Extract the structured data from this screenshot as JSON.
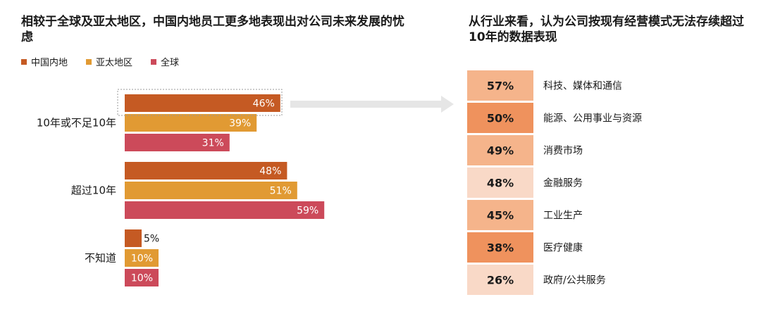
{
  "left_title": "相较于全球及亚太地区，中国内地员工更多地表现出对公司未来发展的忧虑",
  "right_title": "从行业来看，认为公司按现有经营模式无法存续超过10年的数据表现",
  "colors": {
    "series1": "#c55a23",
    "series2": "#e19a33",
    "series3": "#cc4a5a",
    "pct_dark": "#ef925d",
    "pct_mid": "#f5b48b",
    "pct_light": "#f9d9c7",
    "arrow": "#e6e6e6"
  },
  "chart_data": [
    {
      "type": "bar",
      "orientation": "horizontal",
      "categories": [
        "10年或不足10年",
        "超过10年",
        "不知道"
      ],
      "series": [
        {
          "name": "中国内地",
          "values": [
            46,
            48,
            5
          ]
        },
        {
          "name": "亚太地区",
          "values": [
            39,
            51,
            10
          ]
        },
        {
          "name": "全球",
          "values": [
            31,
            59,
            10
          ]
        }
      ],
      "value_labels": [
        [
          "46%",
          "48%",
          "5%"
        ],
        [
          "39%",
          "51%",
          "10%"
        ],
        [
          "31%",
          "59%",
          "10%"
        ]
      ],
      "legend_position": "top-left"
    },
    {
      "type": "table",
      "rows": [
        {
          "pct": 57,
          "pct_label": "57%",
          "label": "科技、媒体和通信",
          "shade": "pct_mid"
        },
        {
          "pct": 50,
          "pct_label": "50%",
          "label": "能源、公用事业与资源",
          "shade": "pct_dark"
        },
        {
          "pct": 49,
          "pct_label": "49%",
          "label": "消费市场",
          "shade": "pct_mid"
        },
        {
          "pct": 48,
          "pct_label": "48%",
          "label": "金融服务",
          "shade": "pct_light"
        },
        {
          "pct": 45,
          "pct_label": "45%",
          "label": "工业生产",
          "shade": "pct_mid"
        },
        {
          "pct": 38,
          "pct_label": "38%",
          "label": "医疗健康",
          "shade": "pct_dark"
        },
        {
          "pct": 26,
          "pct_label": "26%",
          "label": "政府/公共服务",
          "shade": "pct_light"
        }
      ]
    }
  ]
}
